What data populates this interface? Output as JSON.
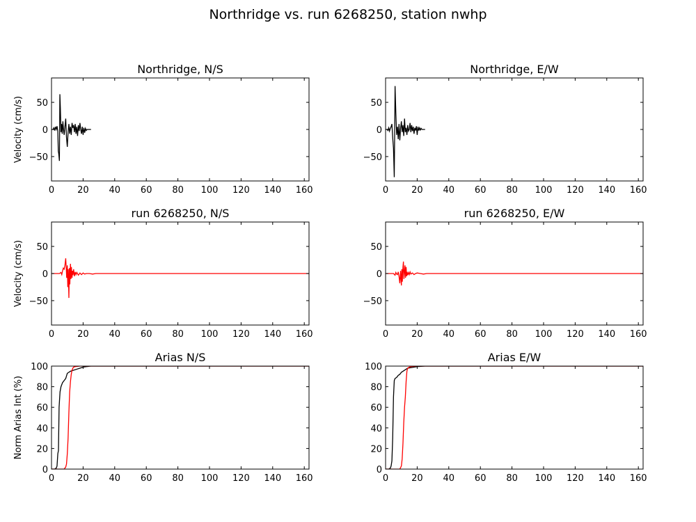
{
  "figure": {
    "suptitle": "Northridge vs. run 6268250, station nwhp"
  },
  "colors": {
    "observed": "#000000",
    "simulated": "#ff0000",
    "axes": "#000000",
    "background": "#ffffff"
  },
  "chart_data": [
    {
      "type": "line",
      "title": "Northridge, N/S",
      "xlabel": "",
      "ylabel": "Velocity (cm/s)",
      "xlim": [
        0,
        163
      ],
      "ylim": [
        -95,
        95
      ],
      "xticks": [
        0,
        20,
        40,
        60,
        80,
        100,
        120,
        140,
        160
      ],
      "yticks": [
        -50,
        0,
        50
      ],
      "series": [
        {
          "color": "#000000",
          "x": [
            0,
            1,
            1.5,
            2,
            2.5,
            3,
            3.5,
            4,
            4.3,
            4.6,
            5,
            5.3,
            5.6,
            6,
            6.4,
            6.8,
            7.2,
            7.6,
            8,
            8.5,
            9,
            9.5,
            10,
            10.5,
            11,
            11.5,
            12,
            12.5,
            13,
            13.5,
            14,
            14.5,
            15,
            15.5,
            16,
            16.5,
            17,
            17.5,
            18,
            18.5,
            19,
            19.5,
            20,
            20.5,
            21,
            21.5,
            22,
            22.5,
            23,
            24,
            25
          ],
          "y": [
            0,
            0,
            3,
            -2,
            5,
            0,
            6,
            -3,
            -40,
            -45,
            -58,
            65,
            40,
            -5,
            10,
            -8,
            15,
            0,
            -10,
            5,
            20,
            -15,
            -32,
            -5,
            10,
            -8,
            5,
            -10,
            12,
            3,
            8,
            -5,
            10,
            -8,
            5,
            -12,
            8,
            -3,
            12,
            0,
            -8,
            5,
            -10,
            3,
            -6,
            2,
            -2,
            0,
            0,
            0,
            0
          ]
        }
      ]
    },
    {
      "type": "line",
      "title": "Northridge, E/W",
      "xlabel": "",
      "ylabel": "",
      "xlim": [
        0,
        163
      ],
      "ylim": [
        -95,
        95
      ],
      "xticks": [
        0,
        20,
        40,
        60,
        80,
        100,
        120,
        140,
        160
      ],
      "yticks": [
        -50,
        0,
        50
      ],
      "series": [
        {
          "color": "#000000",
          "x": [
            0,
            1,
            1.5,
            2,
            2.5,
            3,
            3.5,
            4,
            4.5,
            5,
            5.5,
            6,
            6.5,
            7,
            7.5,
            8,
            8.5,
            9,
            9.5,
            10,
            10.5,
            11,
            11.5,
            12,
            12.5,
            13,
            13.5,
            14,
            14.5,
            15,
            15.5,
            16,
            16.5,
            17,
            17.5,
            18,
            18.5,
            19,
            19.5,
            20,
            20.5,
            21,
            21.5,
            22,
            22.5,
            23,
            24,
            25
          ],
          "y": [
            0,
            0,
            -2,
            3,
            -3,
            2,
            5,
            10,
            -15,
            -35,
            -88,
            80,
            30,
            -10,
            5,
            -18,
            10,
            -20,
            2,
            15,
            -5,
            8,
            -12,
            20,
            -5,
            3,
            -10,
            8,
            -3,
            0,
            12,
            -5,
            8,
            -3,
            5,
            -8,
            3,
            -2,
            6,
            -10,
            5,
            -2,
            3,
            -1,
            2,
            0,
            0,
            0
          ]
        }
      ]
    },
    {
      "type": "line",
      "title": "run 6268250, N/S",
      "xlabel": "",
      "ylabel": "Velocity (cm/s)",
      "xlim": [
        0,
        163
      ],
      "ylim": [
        -95,
        95
      ],
      "xticks": [
        0,
        20,
        40,
        60,
        80,
        100,
        120,
        140,
        160
      ],
      "yticks": [
        -50,
        0,
        50
      ],
      "series": [
        {
          "color": "#ff0000",
          "x": [
            0,
            5,
            6,
            6.5,
            7,
            7.5,
            8,
            8.5,
            9,
            9.3,
            9.6,
            10,
            10.3,
            10.6,
            11,
            11.3,
            11.6,
            12,
            12.3,
            12.6,
            13,
            13.3,
            13.6,
            14,
            14.5,
            15,
            15.5,
            16,
            17,
            18,
            19,
            20,
            21,
            22,
            24,
            26,
            28,
            30,
            35,
            40,
            163
          ],
          "y": [
            0,
            0,
            2,
            -2,
            5,
            10,
            8,
            15,
            28,
            12,
            -8,
            15,
            -25,
            8,
            -45,
            10,
            -20,
            18,
            -10,
            12,
            -8,
            5,
            -3,
            8,
            -5,
            3,
            -2,
            2,
            -3,
            1,
            -2,
            1,
            -1,
            0,
            0,
            -1,
            0,
            0,
            0,
            0,
            0
          ]
        }
      ]
    },
    {
      "type": "line",
      "title": "run 6268250, E/W",
      "xlabel": "",
      "ylabel": "",
      "xlim": [
        0,
        163
      ],
      "ylim": [
        -95,
        95
      ],
      "xticks": [
        0,
        20,
        40,
        60,
        80,
        100,
        120,
        140,
        160
      ],
      "yticks": [
        -50,
        0,
        50
      ],
      "series": [
        {
          "color": "#ff0000",
          "x": [
            0,
            5,
            6,
            6.5,
            7,
            7.5,
            8,
            8.5,
            9,
            9.5,
            10,
            10.3,
            10.6,
            11,
            11.3,
            11.6,
            12,
            12.3,
            12.6,
            13,
            13.3,
            13.6,
            14,
            14.5,
            15,
            15.5,
            16,
            17,
            18,
            19,
            20,
            22,
            24,
            26,
            28,
            30,
            35,
            163
          ],
          "y": [
            0,
            0,
            -3,
            2,
            -1,
            -2,
            3,
            -5,
            -18,
            5,
            -22,
            8,
            -15,
            12,
            22,
            -10,
            5,
            15,
            -8,
            12,
            -5,
            3,
            -3,
            2,
            -2,
            3,
            -1,
            1,
            -2,
            0,
            1,
            0,
            -1,
            0,
            0,
            0,
            0,
            0
          ]
        }
      ]
    },
    {
      "type": "line",
      "title": "Arias N/S",
      "xlabel": "",
      "ylabel": "Norm Arias Int (%)",
      "xlim": [
        0,
        163
      ],
      "ylim": [
        0,
        100
      ],
      "xticks": [
        0,
        20,
        40,
        60,
        80,
        100,
        120,
        140,
        160
      ],
      "yticks": [
        0,
        20,
        40,
        60,
        80,
        100
      ],
      "series": [
        {
          "color": "#000000",
          "x": [
            0,
            2,
            3,
            3.5,
            4,
            4.4,
            4.8,
            5,
            5.4,
            6,
            6.5,
            7,
            8,
            9,
            10,
            11,
            12,
            14,
            16,
            18,
            20,
            22,
            25,
            30,
            163
          ],
          "y": [
            0,
            0,
            1,
            3,
            15,
            18,
            60,
            65,
            75,
            80,
            82,
            84,
            86,
            88,
            93,
            94,
            95,
            96,
            97,
            98,
            99,
            99.5,
            100,
            100,
            100
          ]
        },
        {
          "color": "#ff0000",
          "x": [
            0,
            8,
            9,
            9.5,
            10,
            10.5,
            11,
            11.5,
            12,
            12.5,
            13,
            13.5,
            14,
            15,
            16,
            18,
            20,
            163
          ],
          "y": [
            0,
            0,
            2,
            5,
            15,
            30,
            55,
            75,
            85,
            92,
            96,
            98,
            99,
            99.5,
            99.7,
            100,
            100,
            100
          ]
        }
      ]
    },
    {
      "type": "line",
      "title": "Arias E/W",
      "xlabel": "",
      "ylabel": "",
      "xlim": [
        0,
        163
      ],
      "ylim": [
        0,
        100
      ],
      "xticks": [
        0,
        20,
        40,
        60,
        80,
        100,
        120,
        140,
        160
      ],
      "yticks": [
        0,
        20,
        40,
        60,
        80,
        100
      ],
      "series": [
        {
          "color": "#000000",
          "x": [
            0,
            2,
            3,
            3.5,
            4,
            4.5,
            5,
            5.5,
            6,
            7,
            8,
            9,
            10,
            11,
            12,
            13,
            14,
            16,
            18,
            20,
            25,
            163
          ],
          "y": [
            0,
            0,
            1,
            3,
            8,
            30,
            70,
            86,
            88,
            89,
            91,
            92,
            94,
            95,
            96,
            97,
            98,
            98.5,
            99,
            99.5,
            100,
            100
          ]
        },
        {
          "color": "#ff0000",
          "x": [
            0,
            9,
            10,
            10.5,
            11,
            11.5,
            12,
            12.5,
            13,
            13.5,
            14,
            15,
            16,
            18,
            20,
            163
          ],
          "y": [
            0,
            0,
            3,
            10,
            25,
            45,
            60,
            70,
            85,
            95,
            98,
            99,
            99.5,
            99.8,
            100,
            100
          ]
        }
      ]
    }
  ]
}
